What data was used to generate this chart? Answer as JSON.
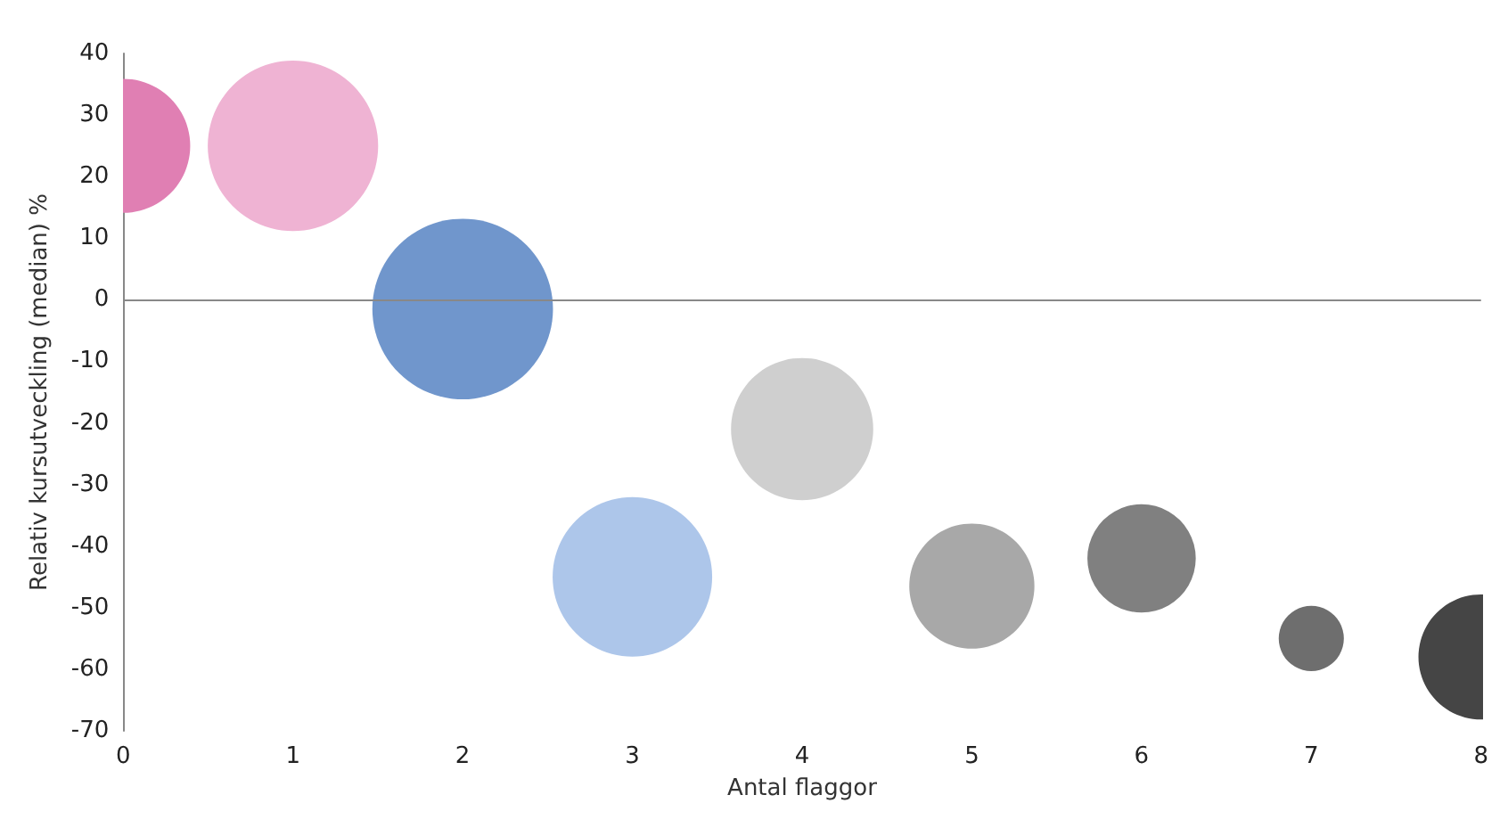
{
  "chart_data": {
    "type": "bubble",
    "xlabel": "Antal flaggor",
    "ylabel": "Relativ kursutveckling (median) %",
    "x": [
      0,
      1,
      2,
      3,
      4,
      5,
      6,
      7,
      8
    ],
    "values": [
      25,
      25,
      -1.5,
      -45,
      -21,
      -46.5,
      -42,
      -55,
      -58
    ],
    "sizes": [
      0.55,
      0.89,
      1,
      0.78,
      0.62,
      0.48,
      0.36,
      0.13,
      0.48
    ],
    "colors": [
      "#e07fb3",
      "#efb3d3",
      "#7096cc",
      "#adc6ea",
      "#cfcfcf",
      "#a8a8a8",
      "#808080",
      "#6e6e6e",
      "#454545"
    ],
    "xlim": [
      0,
      8
    ],
    "xticks": [
      0,
      1,
      2,
      3,
      4,
      5,
      6,
      7,
      8
    ],
    "ylim": [
      -70,
      40
    ],
    "yticks": [
      -70,
      -60,
      -50,
      -40,
      -30,
      -20,
      -10,
      0,
      10,
      20,
      30,
      40
    ],
    "grid": false,
    "ref_lines": [
      {
        "axis": "y",
        "value": 0,
        "color": "#888888"
      }
    ]
  }
}
